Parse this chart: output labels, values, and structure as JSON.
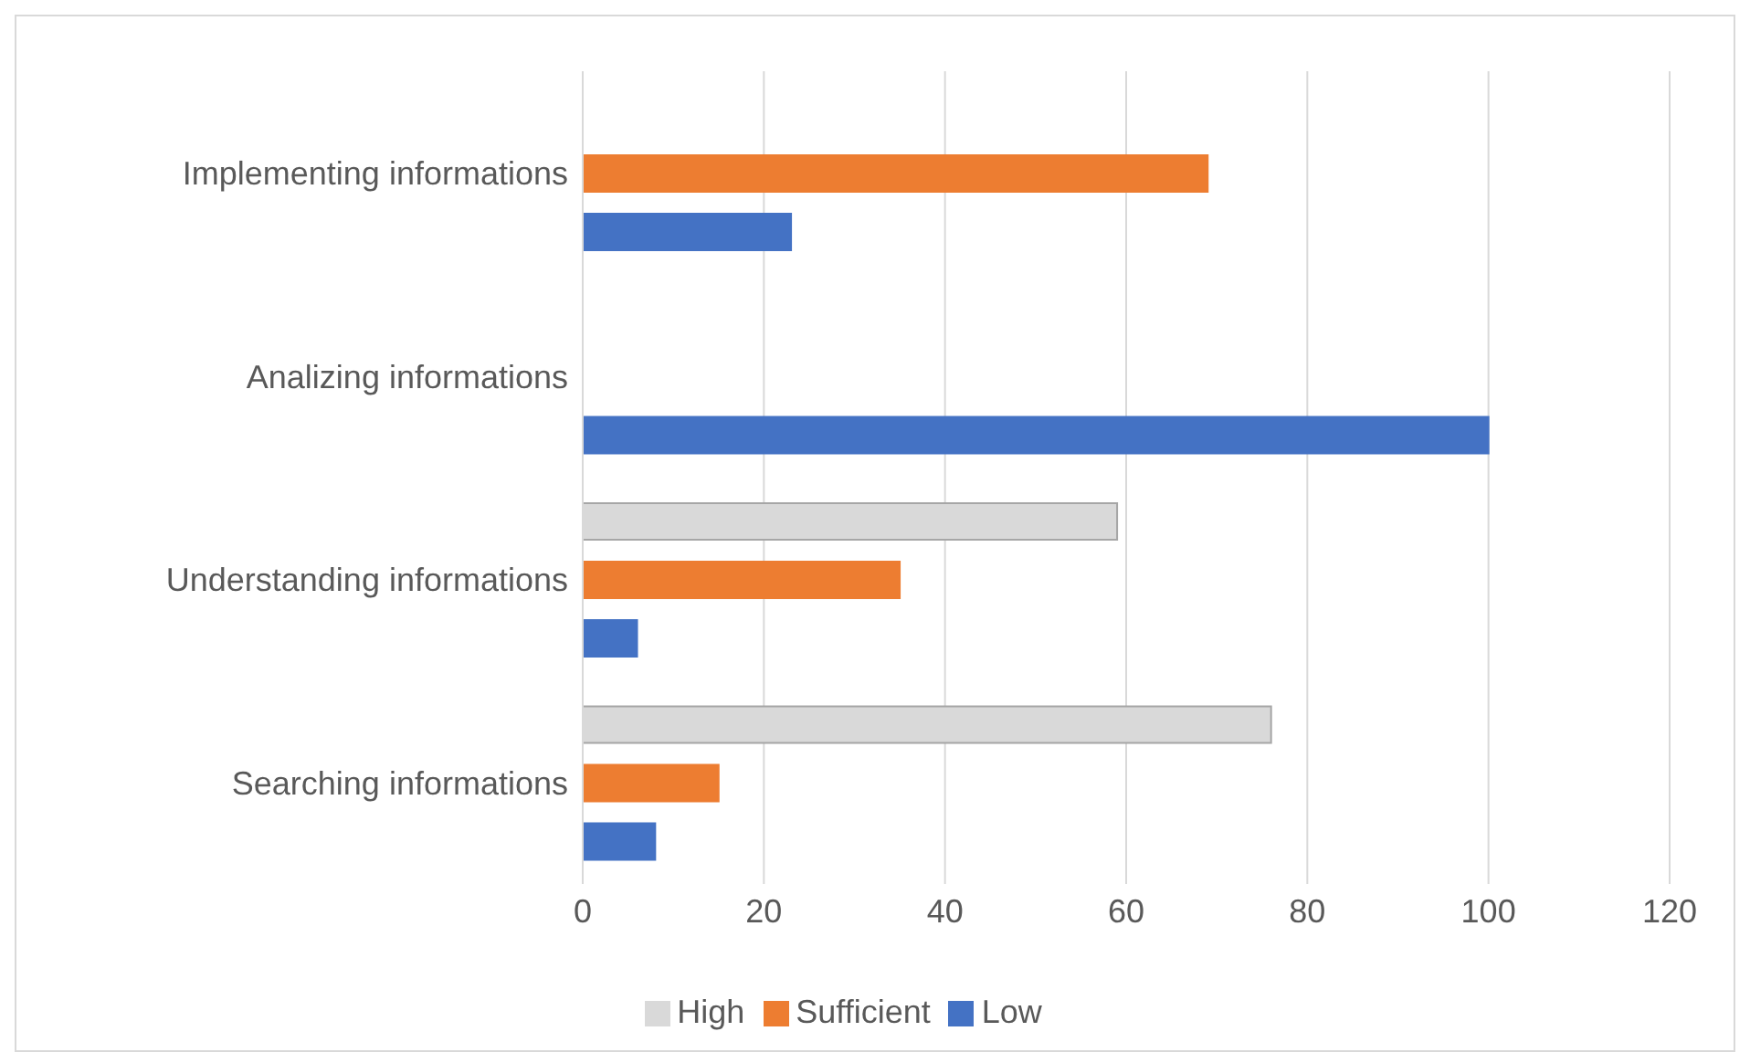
{
  "chart_data": {
    "type": "bar",
    "orientation": "horizontal",
    "categories": [
      "Implementing informations",
      "Analizing informations",
      "Understanding informations",
      "Searching informations"
    ],
    "series": [
      {
        "name": "High",
        "color": "#d9d9d9",
        "values": [
          0,
          0,
          59,
          76
        ]
      },
      {
        "name": "Sufficient",
        "color": "#ed7d31",
        "values": [
          69,
          0,
          35,
          15
        ]
      },
      {
        "name": "Low",
        "color": "#4472c4",
        "values": [
          23,
          100,
          6,
          8
        ]
      }
    ],
    "xlim": [
      0,
      120
    ],
    "xticks": [
      0,
      20,
      40,
      60,
      80,
      100,
      120
    ],
    "grid": "x",
    "legend": "bottom"
  }
}
